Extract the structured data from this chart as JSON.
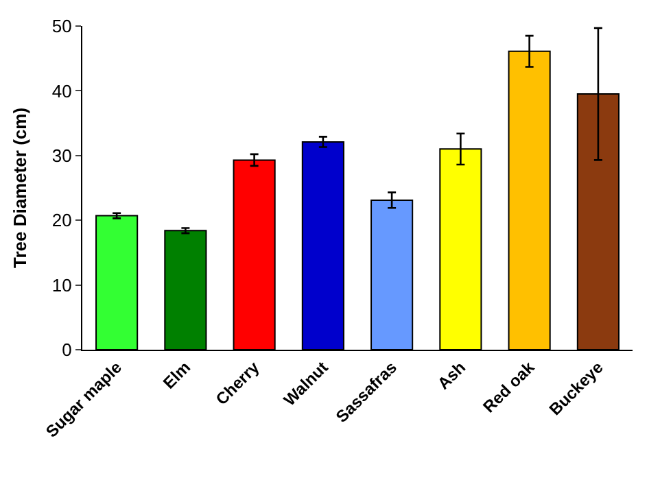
{
  "chart_data": {
    "type": "bar",
    "ylabel": "Tree Diameter (cm)",
    "categories": [
      "Sugar maple",
      "Elm",
      "Cherry",
      "Walnut",
      "Sassafras",
      "Ash",
      "Red oak",
      "Buckeye"
    ],
    "values": [
      20.7,
      18.4,
      29.3,
      32.1,
      23.1,
      31.0,
      46.1,
      39.5
    ],
    "colors": [
      "#33ff33",
      "#008000",
      "#ff0000",
      "#0000cc",
      "#6699ff",
      "#ffff00",
      "#ffc000",
      "#8b3a0f"
    ],
    "errors": [
      0.4,
      0.4,
      0.9,
      0.8,
      1.2,
      2.4,
      2.4,
      10.2
    ],
    "ylim": [
      0,
      50
    ],
    "yticks": [
      0,
      10,
      20,
      30,
      40,
      50
    ]
  }
}
